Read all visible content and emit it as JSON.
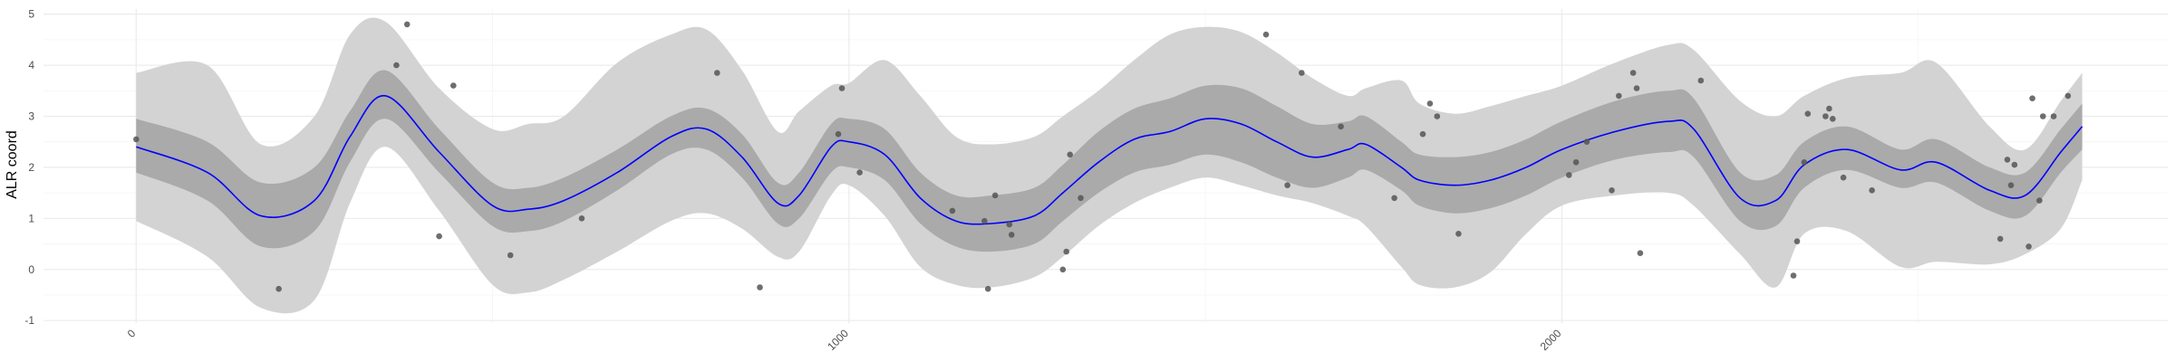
{
  "chart_data": {
    "type": "line",
    "title": "",
    "xlabel": "",
    "ylabel": "ALR coord",
    "xlim": [
      -130,
      2850
    ],
    "ylim": [
      -1.05,
      5.1
    ],
    "x_ticks": [
      0,
      1000,
      2000
    ],
    "x_tick_labels": [
      "0",
      "1000",
      "2000"
    ],
    "y_ticks": [
      -1,
      0,
      1,
      2,
      3,
      4,
      5
    ],
    "y_tick_labels": [
      "-1",
      "0",
      "1",
      "2",
      "3",
      "4",
      "5"
    ],
    "grid": true,
    "legend": "none",
    "colors": {
      "line": "#0000ff",
      "inner_band": "#aaaaaa",
      "outer_band": "#d3d3d3",
      "points": "#555555",
      "grid": "#ebebeb"
    },
    "series": [
      {
        "type": "line",
        "x": [
          0,
          100,
          175,
          250,
          300,
          350,
          425,
          500,
          550,
          600,
          675,
          750,
          800,
          850,
          900,
          930,
          975,
          1000,
          1050,
          1100,
          1150,
          1200,
          1260,
          1300,
          1350,
          1400,
          1450,
          1500,
          1550,
          1600,
          1650,
          1700,
          1725,
          1775,
          1800,
          1850,
          1900,
          1950,
          2000,
          2075,
          2150,
          2185,
          2250,
          2300,
          2340,
          2400,
          2475,
          2525,
          2600,
          2650,
          2700,
          2730
        ],
        "y": [
          2.4,
          1.9,
          1.05,
          1.35,
          2.6,
          3.4,
          2.3,
          1.25,
          1.18,
          1.35,
          1.9,
          2.6,
          2.75,
          2.2,
          1.3,
          1.45,
          2.4,
          2.5,
          2.25,
          1.4,
          0.95,
          0.9,
          1.05,
          1.5,
          2.1,
          2.55,
          2.7,
          2.95,
          2.85,
          2.5,
          2.2,
          2.35,
          2.45,
          2.0,
          1.75,
          1.65,
          1.75,
          2.0,
          2.35,
          2.7,
          2.9,
          2.75,
          1.4,
          1.35,
          2.05,
          2.35,
          1.95,
          2.1,
          1.55,
          1.45,
          2.3,
          2.8
        ]
      },
      {
        "type": "band",
        "name": "",
        "x": [
          0,
          100,
          175,
          250,
          300,
          350,
          425,
          500,
          550,
          600,
          675,
          750,
          800,
          850,
          900,
          930,
          975,
          1000,
          1050,
          1100,
          1150,
          1200,
          1260,
          1300,
          1350,
          1400,
          1450,
          1500,
          1550,
          1600,
          1650,
          1700,
          1725,
          1775,
          1800,
          1850,
          1900,
          1950,
          2000,
          2075,
          2150,
          2185,
          2250,
          2300,
          2340,
          2400,
          2475,
          2525,
          2600,
          2650,
          2700,
          2730
        ],
        "low": [
          1.9,
          1.35,
          0.45,
          0.75,
          2.1,
          2.95,
          1.9,
          0.85,
          0.75,
          0.95,
          1.55,
          2.25,
          2.35,
          1.8,
          0.9,
          1.0,
          1.9,
          2.0,
          1.75,
          0.9,
          0.45,
          0.35,
          0.5,
          0.95,
          1.5,
          1.9,
          2.05,
          2.25,
          2.1,
          1.8,
          1.6,
          1.8,
          1.95,
          1.55,
          1.25,
          1.1,
          1.2,
          1.45,
          1.8,
          2.15,
          2.3,
          2.2,
          0.95,
          0.85,
          1.6,
          1.95,
          1.6,
          1.7,
          1.15,
          1.05,
          1.9,
          2.35
        ],
        "high": [
          2.95,
          2.5,
          1.7,
          2.0,
          3.1,
          3.9,
          2.75,
          1.7,
          1.6,
          1.8,
          2.35,
          3.0,
          3.15,
          2.65,
          1.7,
          1.9,
          2.85,
          2.95,
          2.75,
          1.9,
          1.45,
          1.45,
          1.6,
          2.05,
          2.7,
          3.15,
          3.35,
          3.6,
          3.55,
          3.2,
          2.85,
          2.9,
          3.0,
          2.5,
          2.25,
          2.2,
          2.3,
          2.55,
          2.9,
          3.3,
          3.5,
          3.35,
          1.9,
          1.85,
          2.5,
          2.8,
          2.35,
          2.55,
          2.0,
          1.9,
          2.75,
          3.25
        ]
      },
      {
        "type": "band",
        "name": "",
        "x": [
          0,
          100,
          175,
          250,
          300,
          350,
          425,
          500,
          550,
          600,
          675,
          750,
          800,
          850,
          900,
          930,
          975,
          1000,
          1050,
          1100,
          1150,
          1200,
          1260,
          1300,
          1350,
          1400,
          1450,
          1500,
          1550,
          1600,
          1650,
          1700,
          1725,
          1775,
          1800,
          1850,
          1900,
          1950,
          2000,
          2075,
          2150,
          2185,
          2250,
          2300,
          2340,
          2400,
          2475,
          2525,
          2600,
          2650,
          2700,
          2730
        ],
        "low": [
          0.95,
          0.25,
          -0.75,
          -0.6,
          1.3,
          2.4,
          1.15,
          -0.3,
          -0.45,
          -0.2,
          0.35,
          0.95,
          1.1,
          0.8,
          0.25,
          0.35,
          1.45,
          1.65,
          1.05,
          0.05,
          -0.3,
          -0.35,
          -0.15,
          0.25,
          0.85,
          1.3,
          1.6,
          1.8,
          1.65,
          1.45,
          1.3,
          1.05,
          0.85,
          0.05,
          -0.3,
          -0.35,
          -0.05,
          0.7,
          1.25,
          1.45,
          1.5,
          1.25,
          0.3,
          -0.35,
          0.7,
          0.75,
          0.05,
          0.15,
          0.1,
          0.3,
          0.8,
          1.75
        ],
        "high": [
          3.85,
          4.0,
          2.45,
          3.0,
          4.6,
          4.85,
          3.55,
          2.75,
          2.85,
          3.0,
          4.05,
          4.6,
          4.7,
          3.9,
          2.7,
          3.1,
          3.6,
          3.65,
          4.1,
          3.4,
          2.6,
          2.45,
          2.6,
          3.0,
          3.5,
          4.1,
          4.6,
          4.75,
          4.65,
          4.25,
          3.75,
          3.4,
          3.55,
          3.7,
          3.25,
          3.05,
          3.2,
          3.4,
          3.6,
          4.05,
          4.4,
          4.3,
          3.3,
          3.0,
          3.4,
          3.75,
          3.85,
          4.05,
          2.8,
          2.35,
          3.3,
          3.85
        ]
      },
      {
        "type": "scatter",
        "points": [
          [
            0,
            2.55
          ],
          [
            200,
            -0.38
          ],
          [
            365,
            4.0
          ],
          [
            380,
            4.8
          ],
          [
            425,
            0.65
          ],
          [
            445,
            3.6
          ],
          [
            525,
            0.28
          ],
          [
            625,
            1.0
          ],
          [
            815,
            3.85
          ],
          [
            875,
            -0.35
          ],
          [
            990,
            3.55
          ],
          [
            985,
            2.65
          ],
          [
            1015,
            1.9
          ],
          [
            1145,
            1.15
          ],
          [
            1190,
            0.95
          ],
          [
            1195,
            -0.38
          ],
          [
            1205,
            1.45
          ],
          [
            1225,
            0.88
          ],
          [
            1228,
            0.68
          ],
          [
            1300,
            0.0
          ],
          [
            1305,
            0.35
          ],
          [
            1310,
            2.25
          ],
          [
            1325,
            1.4
          ],
          [
            1585,
            4.6
          ],
          [
            1615,
            1.65
          ],
          [
            1635,
            3.85
          ],
          [
            1690,
            2.8
          ],
          [
            1765,
            1.4
          ],
          [
            1805,
            2.65
          ],
          [
            1815,
            3.25
          ],
          [
            1825,
            3.0
          ],
          [
            1855,
            0.7
          ],
          [
            2010,
            1.85
          ],
          [
            2020,
            2.1
          ],
          [
            2035,
            2.5
          ],
          [
            2070,
            1.55
          ],
          [
            2080,
            3.4
          ],
          [
            2100,
            3.85
          ],
          [
            2105,
            3.55
          ],
          [
            2110,
            0.32
          ],
          [
            2195,
            3.7
          ],
          [
            2325,
            -0.12
          ],
          [
            2330,
            0.55
          ],
          [
            2340,
            2.1
          ],
          [
            2345,
            3.05
          ],
          [
            2370,
            3.0
          ],
          [
            2375,
            3.15
          ],
          [
            2380,
            2.95
          ],
          [
            2395,
            1.8
          ],
          [
            2435,
            1.55
          ],
          [
            2615,
            0.6
          ],
          [
            2625,
            2.15
          ],
          [
            2630,
            1.65
          ],
          [
            2635,
            2.05
          ],
          [
            2655,
            0.45
          ],
          [
            2660,
            3.35
          ],
          [
            2670,
            1.35
          ],
          [
            2675,
            3.0
          ],
          [
            2690,
            3.0
          ],
          [
            2710,
            3.4
          ]
        ]
      }
    ]
  }
}
